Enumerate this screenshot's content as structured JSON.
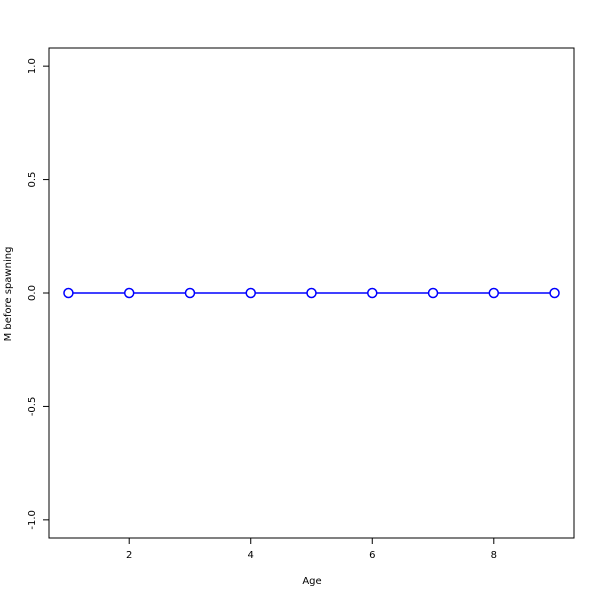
{
  "chart_data": {
    "type": "line",
    "title": "",
    "xlabel": "Age",
    "ylabel": "M before spawning",
    "x": [
      1,
      2,
      3,
      4,
      5,
      6,
      7,
      8,
      9
    ],
    "series": [
      {
        "values": [
          0,
          0,
          0,
          0,
          0,
          0,
          0,
          0,
          0
        ],
        "color": "#0000ff",
        "marker": "open-circle"
      }
    ],
    "xlim": [
      0.68,
      9.32
    ],
    "ylim": [
      -1.08,
      1.08
    ],
    "xticks": [
      2,
      4,
      6,
      8
    ],
    "xtick_labels": [
      "2",
      "4",
      "6",
      "8"
    ],
    "yticks": [
      -1.0,
      -0.5,
      0.0,
      0.5,
      1.0
    ],
    "ytick_labels": [
      "-1.0",
      "-0.5",
      "0.0",
      "0.5",
      "1.0"
    ],
    "grid": false,
    "legend": "none"
  }
}
